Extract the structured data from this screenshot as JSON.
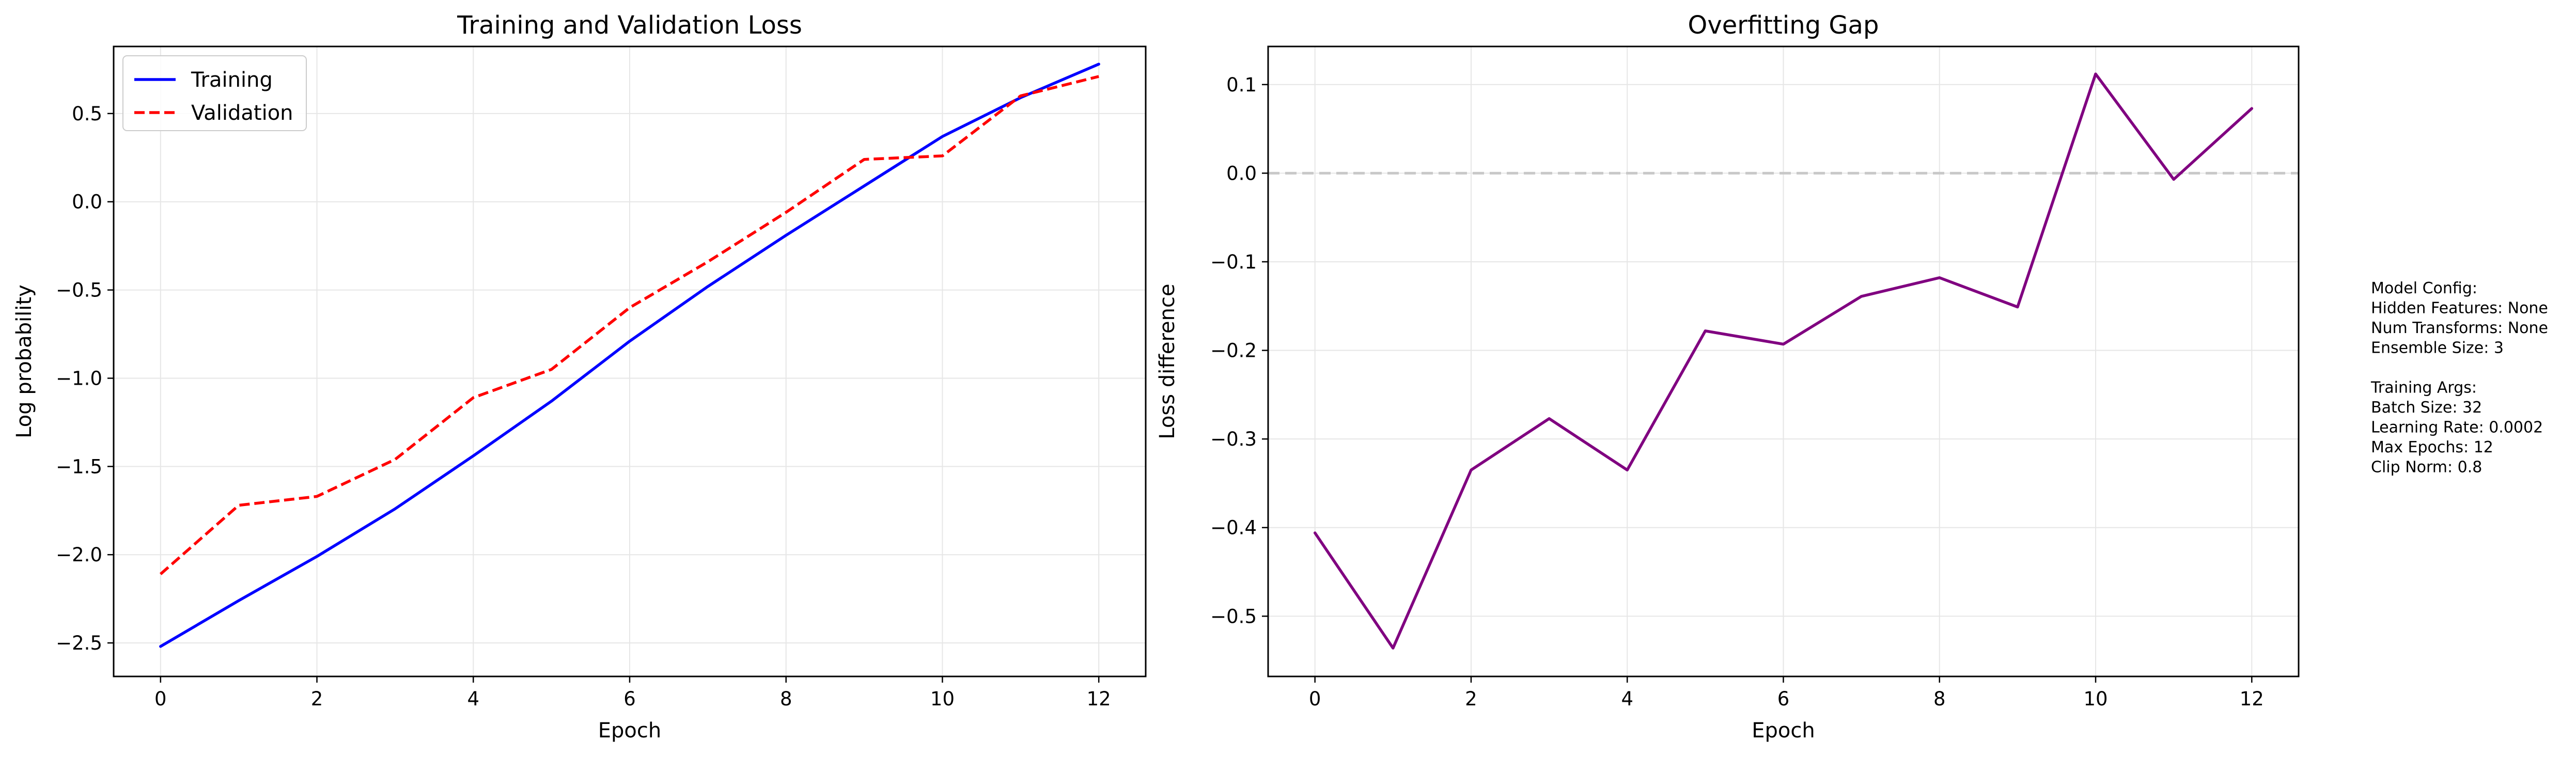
{
  "colors": {
    "training": "#0000ff",
    "validation": "#ff0000",
    "gap": "#800080",
    "zero_line": "#c8c8c8",
    "grid": "#e6e6e6"
  },
  "chart_data": [
    {
      "type": "line",
      "title": "Training and Validation Loss",
      "xlabel": "Epoch",
      "ylabel": "Log probability",
      "x": [
        0,
        1,
        2,
        3,
        4,
        5,
        6,
        7,
        8,
        9,
        10,
        11,
        12
      ],
      "series": [
        {
          "name": "Training",
          "style": "solid",
          "color": "#0000ff",
          "values": [
            -2.52,
            -2.26,
            -2.01,
            -1.74,
            -1.44,
            -1.13,
            -0.79,
            -0.48,
            -0.19,
            0.09,
            0.37,
            0.59,
            0.78
          ]
        },
        {
          "name": "Validation",
          "style": "dashed",
          "color": "#ff0000",
          "values": [
            -2.11,
            -1.72,
            -1.67,
            -1.46,
            -1.11,
            -0.95,
            -0.6,
            -0.34,
            -0.06,
            0.24,
            0.26,
            0.6,
            0.71
          ]
        }
      ],
      "xlim": [
        -0.6,
        12.6
      ],
      "ylim": [
        -2.69,
        0.88
      ],
      "xticks": [
        0,
        2,
        4,
        6,
        8,
        10,
        12
      ],
      "xtick_labels": [
        "0",
        "2",
        "4",
        "6",
        "8",
        "10",
        "12"
      ],
      "yticks": [
        -2.5,
        -2.0,
        -1.5,
        -1.0,
        -0.5,
        0.0,
        0.5
      ],
      "ytick_labels": [
        "−2.5",
        "−2.0",
        "−1.5",
        "−1.0",
        "−0.5",
        "0.0",
        "0.5"
      ],
      "grid": true,
      "legend": "upper-left"
    },
    {
      "type": "line",
      "title": "Overfitting Gap",
      "xlabel": "Epoch",
      "ylabel": "Loss difference",
      "x": [
        0,
        1,
        2,
        3,
        4,
        5,
        6,
        7,
        8,
        9,
        10,
        11,
        12
      ],
      "series": [
        {
          "color": "#800080",
          "values": [
            -0.406,
            -0.536,
            -0.335,
            -0.277,
            -0.335,
            -0.178,
            -0.193,
            -0.139,
            -0.118,
            -0.151,
            0.112,
            -0.007,
            0.073
          ]
        }
      ],
      "reference_line": 0.0,
      "xlim": [
        -0.6,
        12.6
      ],
      "ylim": [
        -0.568,
        0.143
      ],
      "xticks": [
        0,
        2,
        4,
        6,
        8,
        10,
        12
      ],
      "xtick_labels": [
        "0",
        "2",
        "4",
        "6",
        "8",
        "10",
        "12"
      ],
      "yticks": [
        -0.5,
        -0.4,
        -0.3,
        -0.2,
        -0.1,
        0.0,
        0.1
      ],
      "ytick_labels": [
        "−0.5",
        "−0.4",
        "−0.3",
        "−0.2",
        "−0.1",
        "0.0",
        "0.1"
      ],
      "grid": true
    }
  ],
  "config_text": [
    "Model Config:",
    "Hidden Features: None",
    "Num Transforms: None",
    "Ensemble Size: 3",
    "",
    "Training Args:",
    "Batch Size: 32",
    "Learning Rate: 0.0002",
    "Max Epochs: 12",
    "Clip Norm: 0.8"
  ]
}
